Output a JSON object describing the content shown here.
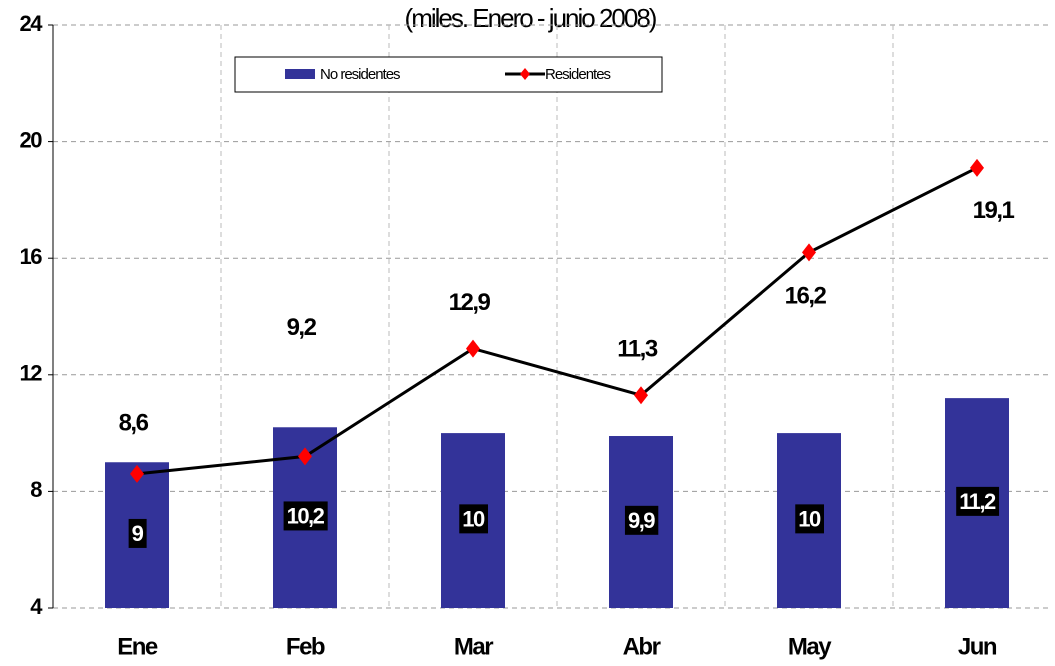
{
  "chart_data": {
    "type": "bar_line",
    "title": "(miles. Enero - junio 2008)",
    "categories": [
      "Ene",
      "Feb",
      "Mar",
      "Abr",
      "May",
      "Jun"
    ],
    "series": [
      {
        "name": "No residentes",
        "type": "bar",
        "color": "#333399",
        "values": [
          9,
          10.2,
          10,
          9.9,
          10,
          11.2
        ],
        "value_labels": [
          "9",
          "10,2",
          "10",
          "9,9",
          "10",
          "11,2"
        ]
      },
      {
        "name": "Residentes",
        "type": "line",
        "color": "#000000",
        "marker_color": "#ff0000",
        "values": [
          8.6,
          9.2,
          12.9,
          11.3,
          16.2,
          19.1
        ],
        "value_labels": [
          "8,6",
          "9,2",
          "12,9",
          "11,3",
          "16,2",
          "19,1"
        ]
      }
    ],
    "ylim": [
      4,
      24
    ],
    "yticks": [
      4,
      8,
      12,
      16,
      20,
      24
    ],
    "grid": true,
    "legend": "top"
  }
}
